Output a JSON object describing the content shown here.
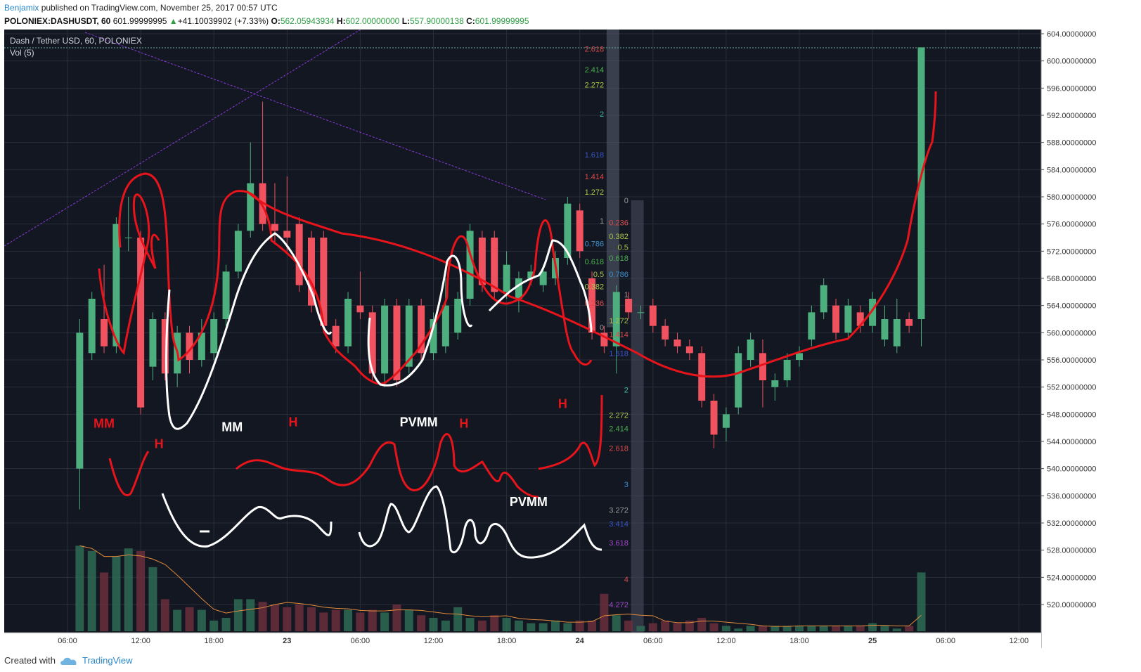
{
  "header": {
    "author": "Benjamix",
    "published_text": " published on TradingView.com, November 25, 2017 00:57 UTC"
  },
  "symbol_line": {
    "symbol": "POLONIEX:DASHUSDT, 60",
    "last": "601.99999995",
    "change": "+41.10039902 (+7.33%)",
    "o_label": "O:",
    "o": "562.05943934",
    "h_label": "H:",
    "h": "602.00000000",
    "l_label": "L:",
    "l": "557.90000138",
    "c_label": "C:",
    "c": "601.99999995"
  },
  "legend": {
    "series_title": "Dash / Tether USD, 60, POLONIEX",
    "volume_title": "Vol (5)"
  },
  "footer": {
    "created_with": "Created with",
    "brand": "TradingView"
  },
  "colors": {
    "up": "#4caf7d",
    "down": "#f0525f",
    "bg": "#131722",
    "grid": "#2a2e39",
    "drawing_red": "#e8141b",
    "drawing_white": "#ffffff"
  },
  "chart_data": {
    "type": "candlestick",
    "y_axis": {
      "min": 520,
      "max": 604,
      "ticks": [
        "604.00000000",
        "600.00000000",
        "596.00000000",
        "592.00000000",
        "588.00000000",
        "584.00000000",
        "580.00000000",
        "576.00000000",
        "572.00000000",
        "568.00000000",
        "564.00000000",
        "560.00000000",
        "556.00000000",
        "552.00000000",
        "548.00000000",
        "544.00000000",
        "540.00000000",
        "536.00000000",
        "532.00000000",
        "528.00000000",
        "524.00000000",
        "520.00000000"
      ]
    },
    "x_axis": {
      "labels": [
        {
          "t": 6,
          "label": "06:00"
        },
        {
          "t": 12,
          "label": "12:00"
        },
        {
          "t": 18,
          "label": "18:00"
        },
        {
          "t": 24,
          "label": "23"
        },
        {
          "t": 30,
          "label": "06:00"
        },
        {
          "t": 36,
          "label": "12:00"
        },
        {
          "t": 42,
          "label": "18:00"
        },
        {
          "t": 48,
          "label": "24"
        },
        {
          "t": 54,
          "label": "06:00"
        },
        {
          "t": 60,
          "label": "12:00"
        },
        {
          "t": 66,
          "label": "18:00"
        },
        {
          "t": 72,
          "label": "25"
        },
        {
          "t": 78,
          "label": "06:00"
        },
        {
          "t": 84,
          "label": "12:00"
        }
      ]
    },
    "candles": [
      {
        "t": 7,
        "o": 540,
        "h": 562,
        "l": 534,
        "c": 560,
        "v": 32
      },
      {
        "t": 8,
        "o": 557,
        "h": 566,
        "l": 556,
        "c": 565,
        "v": 30
      },
      {
        "t": 9,
        "o": 562,
        "h": 570,
        "l": 557,
        "c": 558,
        "v": 22
      },
      {
        "t": 10,
        "o": 558,
        "h": 577,
        "l": 557,
        "c": 576,
        "v": 28
      },
      {
        "t": 11,
        "o": 574,
        "h": 580,
        "l": 572,
        "c": 574,
        "v": 31
      },
      {
        "t": 12,
        "o": 574,
        "h": 575,
        "l": 548,
        "c": 549,
        "v": 30
      },
      {
        "t": 13,
        "o": 555,
        "h": 563,
        "l": 553,
        "c": 562,
        "v": 24
      },
      {
        "t": 14,
        "o": 562,
        "h": 563,
        "l": 553,
        "c": 554,
        "v": 12
      },
      {
        "t": 15,
        "o": 554,
        "h": 561,
        "l": 552,
        "c": 560,
        "v": 8
      },
      {
        "t": 16,
        "o": 560,
        "h": 561,
        "l": 554,
        "c": 556,
        "v": 9
      },
      {
        "t": 17,
        "o": 556,
        "h": 562,
        "l": 555,
        "c": 560,
        "v": 8
      },
      {
        "t": 18,
        "o": 557,
        "h": 563,
        "l": 556,
        "c": 562,
        "v": 4
      },
      {
        "t": 19,
        "o": 562,
        "h": 570,
        "l": 561,
        "c": 569,
        "v": 5
      },
      {
        "t": 20,
        "o": 569,
        "h": 576,
        "l": 568,
        "c": 575,
        "v": 12
      },
      {
        "t": 21,
        "o": 575,
        "h": 588,
        "l": 574,
        "c": 582,
        "v": 12
      },
      {
        "t": 22,
        "o": 582,
        "h": 594,
        "l": 575,
        "c": 576,
        "v": 11
      },
      {
        "t": 23,
        "o": 576,
        "h": 582,
        "l": 573,
        "c": 575,
        "v": 10
      },
      {
        "t": 24,
        "o": 575,
        "h": 583,
        "l": 572,
        "c": 574,
        "v": 9
      },
      {
        "t": 25,
        "o": 576,
        "h": 577,
        "l": 566,
        "c": 567,
        "v": 10
      },
      {
        "t": 26,
        "o": 574,
        "h": 575,
        "l": 563,
        "c": 564,
        "v": 9
      },
      {
        "t": 27,
        "o": 574,
        "h": 575,
        "l": 560,
        "c": 561,
        "v": 7
      },
      {
        "t": 28,
        "o": 561,
        "h": 562,
        "l": 557,
        "c": 558,
        "v": 8
      },
      {
        "t": 29,
        "o": 558,
        "h": 566,
        "l": 557,
        "c": 565,
        "v": 8
      },
      {
        "t": 30,
        "o": 564,
        "h": 569,
        "l": 562,
        "c": 563,
        "v": 7
      },
      {
        "t": 31,
        "o": 563,
        "h": 564,
        "l": 553,
        "c": 554,
        "v": 8
      },
      {
        "t": 32,
        "o": 554,
        "h": 565,
        "l": 552,
        "c": 564,
        "v": 7
      },
      {
        "t": 33,
        "o": 564,
        "h": 565,
        "l": 552,
        "c": 553,
        "v": 10
      },
      {
        "t": 34,
        "o": 555,
        "h": 565,
        "l": 554,
        "c": 564,
        "v": 8
      },
      {
        "t": 35,
        "o": 564,
        "h": 565,
        "l": 556,
        "c": 557,
        "v": 6
      },
      {
        "t": 36,
        "o": 557,
        "h": 563,
        "l": 556,
        "c": 562,
        "v": 5
      },
      {
        "t": 37,
        "o": 558,
        "h": 568,
        "l": 557,
        "c": 564,
        "v": 4
      },
      {
        "t": 38,
        "o": 560,
        "h": 566,
        "l": 559,
        "c": 565,
        "v": 9
      },
      {
        "t": 39,
        "o": 565,
        "h": 576,
        "l": 564,
        "c": 575,
        "v": 5
      },
      {
        "t": 40,
        "o": 574,
        "h": 575,
        "l": 566,
        "c": 567,
        "v": 4
      },
      {
        "t": 41,
        "o": 574,
        "h": 575,
        "l": 565,
        "c": 566,
        "v": 6
      },
      {
        "t": 42,
        "o": 566,
        "h": 572,
        "l": 565,
        "c": 570,
        "v": 5
      },
      {
        "t": 43,
        "o": 565,
        "h": 569,
        "l": 563,
        "c": 568,
        "v": 4
      },
      {
        "t": 44,
        "o": 568,
        "h": 570,
        "l": 567,
        "c": 569,
        "v": 3
      },
      {
        "t": 45,
        "o": 567,
        "h": 570,
        "l": 566,
        "c": 569,
        "v": 3
      },
      {
        "t": 46,
        "o": 568,
        "h": 572,
        "l": 567,
        "c": 571,
        "v": 4
      },
      {
        "t": 47,
        "o": 571,
        "h": 580,
        "l": 570,
        "c": 579,
        "v": 3
      },
      {
        "t": 48,
        "o": 578,
        "h": 579,
        "l": 571,
        "c": 572,
        "v": 4
      },
      {
        "t": 49,
        "o": 568,
        "h": 569,
        "l": 559,
        "c": 560,
        "v": 4
      },
      {
        "t": 50,
        "o": 560,
        "h": 561,
        "l": 557,
        "c": 558,
        "v": 14
      },
      {
        "t": 51,
        "o": 558,
        "h": 567,
        "l": 554,
        "c": 566,
        "v": 6
      },
      {
        "t": 52,
        "o": 565,
        "h": 566,
        "l": 562,
        "c": 563,
        "v": 4
      },
      {
        "t": 53,
        "o": 563,
        "h": 564,
        "l": 562,
        "c": 563,
        "v": 2
      },
      {
        "t": 54,
        "o": 564,
        "h": 565,
        "l": 560,
        "c": 561,
        "v": 3
      },
      {
        "t": 55,
        "o": 561,
        "h": 562,
        "l": 558,
        "c": 559,
        "v": 4
      },
      {
        "t": 56,
        "o": 559,
        "h": 560,
        "l": 557,
        "c": 558,
        "v": 3
      },
      {
        "t": 57,
        "o": 558,
        "h": 559,
        "l": 556,
        "c": 557,
        "v": 4
      },
      {
        "t": 58,
        "o": 557,
        "h": 558,
        "l": 549,
        "c": 550,
        "v": 5
      },
      {
        "t": 59,
        "o": 550,
        "h": 551,
        "l": 543,
        "c": 545,
        "v": 3
      },
      {
        "t": 60,
        "o": 546,
        "h": 549,
        "l": 544,
        "c": 548,
        "v": 2
      },
      {
        "t": 61,
        "o": 549,
        "h": 558,
        "l": 548,
        "c": 557,
        "v": 1
      },
      {
        "t": 62,
        "o": 556,
        "h": 560,
        "l": 555,
        "c": 559,
        "v": 2
      },
      {
        "t": 63,
        "o": 557,
        "h": 559,
        "l": 549,
        "c": 553,
        "v": 2
      },
      {
        "t": 64,
        "o": 552,
        "h": 554,
        "l": 550,
        "c": 553,
        "v": 2
      },
      {
        "t": 65,
        "o": 553,
        "h": 557,
        "l": 552,
        "c": 556,
        "v": 2
      },
      {
        "t": 66,
        "o": 556,
        "h": 558,
        "l": 555,
        "c": 557,
        "v": 2
      },
      {
        "t": 67,
        "o": 559,
        "h": 564,
        "l": 558,
        "c": 563,
        "v": 2
      },
      {
        "t": 68,
        "o": 563,
        "h": 568,
        "l": 562,
        "c": 567,
        "v": 2
      },
      {
        "t": 69,
        "o": 564,
        "h": 565,
        "l": 559,
        "c": 560,
        "v": 2
      },
      {
        "t": 70,
        "o": 560,
        "h": 565,
        "l": 559,
        "c": 564,
        "v": 2
      },
      {
        "t": 71,
        "o": 563,
        "h": 564,
        "l": 560,
        "c": 561,
        "v": 2
      },
      {
        "t": 72,
        "o": 561,
        "h": 566,
        "l": 560,
        "c": 565,
        "v": 3
      },
      {
        "t": 73,
        "o": 559,
        "h": 564,
        "l": 558,
        "c": 562,
        "v": 2
      },
      {
        "t": 74,
        "o": 558,
        "h": 565,
        "l": 557,
        "c": 562,
        "v": 1
      },
      {
        "t": 75,
        "o": 562,
        "h": 563,
        "l": 560,
        "c": 561,
        "v": 2
      },
      {
        "t": 76,
        "o": 562,
        "h": 602,
        "l": 558,
        "c": 602,
        "v": 22
      }
    ],
    "volume": {
      "max": 50
    },
    "fib_left": [
      {
        "label": "2.618",
        "price": 601.8,
        "color": "#d94a4a"
      },
      {
        "label": "2.414",
        "price": 598.7,
        "color": "#4caf50"
      },
      {
        "label": "2.272",
        "price": 596.5,
        "color": "#a8c84a"
      },
      {
        "label": "2",
        "price": 592.2,
        "color": "#3fb8a8"
      },
      {
        "label": "1.618",
        "price": 586.2,
        "color": "#3a55c8"
      },
      {
        "label": "1.414",
        "price": 583.0,
        "color": "#d94a4a"
      },
      {
        "label": "1.272",
        "price": 580.7,
        "color": "#a8c84a"
      },
      {
        "label": "1",
        "price": 576.5,
        "color": "#999999"
      },
      {
        "label": "0.786",
        "price": 573.1,
        "color": "#3a8fd0"
      },
      {
        "label": "0.618",
        "price": 570.5,
        "color": "#4caf50"
      },
      {
        "label": "0.5",
        "price": 568.6,
        "color": "#a8c84a"
      },
      {
        "label": "0.382",
        "price": 566.8,
        "color": "#a8c84a"
      },
      {
        "label": "0.236",
        "price": 564.4,
        "color": "#d94a4a"
      },
      {
        "label": "0",
        "price": 560.8,
        "color": "#999999"
      }
    ],
    "fib_right": [
      {
        "label": "0",
        "price": 579.5,
        "color": "#999999"
      },
      {
        "label": "0.236",
        "price": 576.2,
        "color": "#d94a4a"
      },
      {
        "label": "0.382",
        "price": 574.2,
        "color": "#a8c84a"
      },
      {
        "label": "0.5",
        "price": 572.6,
        "color": "#a8c84a"
      },
      {
        "label": "0.618",
        "price": 571.0,
        "color": "#4caf50"
      },
      {
        "label": "0.786",
        "price": 568.6,
        "color": "#3a8fd0"
      },
      {
        "label": "1",
        "price": 565.6,
        "color": "#999999"
      },
      {
        "label": "1.272",
        "price": 561.8,
        "color": "#a8c84a"
      },
      {
        "label": "1.414",
        "price": 559.8,
        "color": "#d94a4a"
      },
      {
        "label": "1.618",
        "price": 557.0,
        "color": "#3a55c8"
      },
      {
        "label": "2",
        "price": 551.6,
        "color": "#3fb8a8"
      },
      {
        "label": "2.272",
        "price": 547.9,
        "color": "#a8c84a"
      },
      {
        "label": "2.414",
        "price": 545.9,
        "color": "#4caf50"
      },
      {
        "label": "2.618",
        "price": 543.0,
        "color": "#d94a4a"
      },
      {
        "label": "3",
        "price": 537.7,
        "color": "#3a8fd0"
      },
      {
        "label": "3.272",
        "price": 533.9,
        "color": "#999999"
      },
      {
        "label": "3.414",
        "price": 531.9,
        "color": "#3a55c8"
      },
      {
        "label": "3.618",
        "price": 529.1,
        "color": "#a048c8"
      },
      {
        "label": "4",
        "price": 523.7,
        "color": "#d94a4a"
      },
      {
        "label": "4.272",
        "price": 520.0,
        "color": "#a048c8"
      }
    ],
    "annotations": [
      {
        "text": "MM",
        "color": "red",
        "t": 9,
        "price": 546.0
      },
      {
        "text": "H",
        "color": "red",
        "t": 13.5,
        "price": 543.0
      },
      {
        "text": "MM",
        "color": "white",
        "t": 19.5,
        "price": 545.5
      },
      {
        "text": "H",
        "color": "red",
        "t": 24.5,
        "price": 546.2
      },
      {
        "text": "PVMM",
        "color": "white",
        "t": 34.8,
        "price": 546.2
      },
      {
        "text": "H",
        "color": "red",
        "t": 38.5,
        "price": 546.0
      },
      {
        "text": "PVMM",
        "color": "white",
        "t": 43.8,
        "price": 534.5
      },
      {
        "text": "H",
        "color": "red",
        "t": 46.6,
        "price": 548.9
      }
    ]
  }
}
